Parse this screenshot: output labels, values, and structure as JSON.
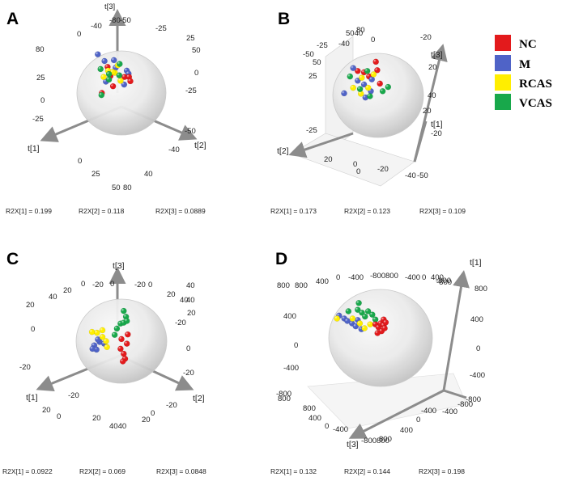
{
  "legend": {
    "entries": [
      {
        "name": "NC",
        "color": "#e31a1c"
      },
      {
        "name": "M",
        "color": "#4f63c7"
      },
      {
        "name": "RCAS",
        "color": "#ffee00"
      },
      {
        "name": "VCAS",
        "color": "#18a84b"
      }
    ]
  },
  "chart_data": [
    {
      "panel": "A",
      "type": "scatter",
      "title": "",
      "axes": [
        "t[1]",
        "t[2]",
        "t[3]"
      ],
      "tick_labels": [
        "t[3]",
        "-80",
        "-50",
        "-25",
        "-40",
        "0",
        "25",
        "50",
        "80",
        "25",
        "0",
        "-25",
        "-25",
        "-50",
        "0",
        "-40",
        "25",
        "0",
        "40",
        "50",
        "80",
        "t[1]",
        "t[2]"
      ],
      "variance": [
        "R2X[1] = 0.199",
        "R2X[2] = 0.118",
        "R2X[3] = 0.0889"
      ],
      "points": [
        {
          "group": "M",
          "x": 0.62,
          "y": 0.24
        },
        {
          "group": "M",
          "x": 0.83,
          "y": 0.22
        },
        {
          "group": "M",
          "x": 0.87,
          "y": 0.4
        },
        {
          "group": "M",
          "x": 1.12,
          "y": 0.47
        },
        {
          "group": "M",
          "x": 1.16,
          "y": 0.54
        },
        {
          "group": "M",
          "x": 1.06,
          "y": 0.8
        },
        {
          "group": "M",
          "x": 0.65,
          "y": 0.73
        },
        {
          "group": "M",
          "x": 0.47,
          "y": 0.08
        },
        {
          "group": "NC",
          "x": 0.69,
          "y": 0.38
        },
        {
          "group": "NC",
          "x": 1.07,
          "y": 0.62
        },
        {
          "group": "NC",
          "x": 1.17,
          "y": 0.62
        },
        {
          "group": "NC",
          "x": 0.81,
          "y": 0.84
        },
        {
          "group": "NC",
          "x": 1.2,
          "y": 0.72
        },
        {
          "group": "NC",
          "x": 0.56,
          "y": 1.0
        },
        {
          "group": "NC",
          "x": 0.75,
          "y": 0.6
        },
        {
          "group": "RCAS",
          "x": 0.85,
          "y": 0.52
        },
        {
          "group": "RCAS",
          "x": 0.92,
          "y": 0.34
        },
        {
          "group": "RCAS",
          "x": 0.8,
          "y": 0.5
        },
        {
          "group": "RCAS",
          "x": 0.98,
          "y": 0.71
        },
        {
          "group": "RCAS",
          "x": 0.6,
          "y": 0.62
        },
        {
          "group": "RCAS",
          "x": 0.7,
          "y": 0.47
        },
        {
          "group": "VCAS",
          "x": 0.53,
          "y": 0.43
        },
        {
          "group": "VCAS",
          "x": 0.72,
          "y": 0.55
        },
        {
          "group": "VCAS",
          "x": 0.95,
          "y": 0.58
        },
        {
          "group": "VCAS",
          "x": 0.72,
          "y": 0.68
        },
        {
          "group": "VCAS",
          "x": 0.55,
          "y": 1.05
        },
        {
          "group": "VCAS",
          "x": 0.96,
          "y": 0.31
        }
      ]
    },
    {
      "panel": "B",
      "type": "scatter",
      "title": "",
      "axes": [
        "t[1]",
        "t[2]",
        "t[3]"
      ],
      "tick_labels": [
        "5040",
        "80",
        "-25",
        "-50",
        "-40",
        "0",
        "-20",
        "20",
        "t[3]",
        "50",
        "25",
        "-25",
        "40",
        "20",
        "t[1]",
        "-20",
        "0",
        "20",
        "-40",
        "-50",
        "-20",
        "0",
        "t[2]"
      ],
      "variance": [
        "R2X[1] = 0.173",
        "R2X[2] = 0.123",
        "R2X[3] = 0.109"
      ],
      "points": [
        {
          "group": "NC",
          "x": 0.55,
          "y": 0.42
        },
        {
          "group": "NC",
          "x": 0.69,
          "y": 0.45
        },
        {
          "group": "NC",
          "x": 0.8,
          "y": 0.55
        },
        {
          "group": "NC",
          "x": 1.04,
          "y": 0.72
        },
        {
          "group": "NC",
          "x": 0.98,
          "y": 0.4
        },
        {
          "group": "NC",
          "x": 0.95,
          "y": 0.2
        },
        {
          "group": "M",
          "x": 0.45,
          "y": 0.35
        },
        {
          "group": "M",
          "x": 0.25,
          "y": 0.95
        },
        {
          "group": "M",
          "x": 0.55,
          "y": 0.65
        },
        {
          "group": "M",
          "x": 0.69,
          "y": 0.74
        },
        {
          "group": "M",
          "x": 0.84,
          "y": 0.9
        },
        {
          "group": "M",
          "x": 0.72,
          "y": 1.05
        },
        {
          "group": "M",
          "x": 0.86,
          "y": 0.62
        },
        {
          "group": "RCAS",
          "x": 0.64,
          "y": 0.58
        },
        {
          "group": "RCAS",
          "x": 0.78,
          "y": 0.82
        },
        {
          "group": "RCAS",
          "x": 0.62,
          "y": 0.96
        },
        {
          "group": "RCAS",
          "x": 0.9,
          "y": 0.5
        },
        {
          "group": "RCAS",
          "x": 0.45,
          "y": 0.82
        },
        {
          "group": "VCAS",
          "x": 0.38,
          "y": 0.55
        },
        {
          "group": "VCAS",
          "x": 0.6,
          "y": 0.85
        },
        {
          "group": "VCAS",
          "x": 0.82,
          "y": 1.02
        },
        {
          "group": "VCAS",
          "x": 1.1,
          "y": 0.9
        },
        {
          "group": "VCAS",
          "x": 1.22,
          "y": 0.8
        },
        {
          "group": "VCAS",
          "x": 0.76,
          "y": 0.42
        }
      ]
    },
    {
      "panel": "C",
      "type": "scatter",
      "title": "",
      "axes": [
        "t[1]",
        "t[2]",
        "t[3]"
      ],
      "tick_labels": [
        "-20",
        "0",
        "-20",
        "0",
        "20",
        "40",
        "20",
        "40",
        "20",
        "0",
        "-20",
        "t[3]",
        "20",
        "0",
        "-20",
        "0",
        "-20",
        "20",
        "0",
        "-20",
        "40",
        "20",
        "40",
        "-20",
        "0",
        "20",
        "4040",
        "t[1]",
        "t[2]"
      ],
      "variance": [
        "R2X[1] = 0.0922",
        "R2X[2] = 0.069",
        "R2X[3] = 0.0848"
      ],
      "points": [
        {
          "group": "VCAS",
          "x": 1.05,
          "y": 0.28
        },
        {
          "group": "VCAS",
          "x": 1.1,
          "y": 0.42
        },
        {
          "group": "VCAS",
          "x": 0.98,
          "y": 0.58
        },
        {
          "group": "VCAS",
          "x": 0.9,
          "y": 0.7
        },
        {
          "group": "VCAS",
          "x": 1.05,
          "y": 0.56
        },
        {
          "group": "VCAS",
          "x": 0.85,
          "y": 0.85
        },
        {
          "group": "VCAS",
          "x": 1.12,
          "y": 0.52
        },
        {
          "group": "NC",
          "x": 1.0,
          "y": 0.95
        },
        {
          "group": "NC",
          "x": 1.12,
          "y": 1.06
        },
        {
          "group": "NC",
          "x": 0.98,
          "y": 1.18
        },
        {
          "group": "NC",
          "x": 1.05,
          "y": 1.3
        },
        {
          "group": "NC",
          "x": 1.08,
          "y": 1.42
        },
        {
          "group": "NC",
          "x": 1.03,
          "y": 1.48
        },
        {
          "group": "NC",
          "x": 1.14,
          "y": 0.84
        },
        {
          "group": "M",
          "x": 0.4,
          "y": 1.1
        },
        {
          "group": "M",
          "x": 0.45,
          "y": 1.2
        },
        {
          "group": "M",
          "x": 0.52,
          "y": 1.02
        },
        {
          "group": "M",
          "x": 0.62,
          "y": 1.06
        },
        {
          "group": "M",
          "x": 0.48,
          "y": 0.96
        },
        {
          "group": "M",
          "x": 0.36,
          "y": 1.18
        },
        {
          "group": "RCAS",
          "x": 0.35,
          "y": 0.78
        },
        {
          "group": "RCAS",
          "x": 0.46,
          "y": 0.8
        },
        {
          "group": "RCAS",
          "x": 0.58,
          "y": 0.9
        },
        {
          "group": "RCAS",
          "x": 0.66,
          "y": 1.0
        },
        {
          "group": "RCAS",
          "x": 0.68,
          "y": 1.14
        },
        {
          "group": "RCAS",
          "x": 0.58,
          "y": 0.74
        }
      ]
    },
    {
      "panel": "D",
      "type": "scatter",
      "title": "",
      "axes": [
        "t[1]",
        "t[2]",
        "t[3]"
      ],
      "tick_labels": [
        "-800800",
        "-400",
        "0",
        "400",
        "800",
        "-400",
        "0",
        "400",
        "800",
        "t[1]",
        "800",
        "400",
        "0",
        "-400",
        "-800",
        "800",
        "-800",
        "400",
        "0",
        "-400",
        "-800",
        "800",
        "400",
        "0",
        "-400",
        "-800",
        "-400",
        "0",
        "400",
        "800",
        "-800",
        "-400",
        "-800800",
        "t[3]"
      ],
      "variance": [
        "R2X[1] = 0.132",
        "R2X[2] = 0.144",
        "R2X[3] = 0.198"
      ],
      "points": [
        {
          "group": "M",
          "x": 0.2,
          "y": 0.54
        },
        {
          "group": "M",
          "x": 0.3,
          "y": 0.6
        },
        {
          "group": "M",
          "x": 0.36,
          "y": 0.65
        },
        {
          "group": "M",
          "x": 0.45,
          "y": 0.7
        },
        {
          "group": "M",
          "x": 0.52,
          "y": 0.76
        },
        {
          "group": "M",
          "x": 0.56,
          "y": 0.63
        },
        {
          "group": "M",
          "x": 0.63,
          "y": 0.82
        },
        {
          "group": "RCAS",
          "x": 0.16,
          "y": 0.6
        },
        {
          "group": "RCAS",
          "x": 0.46,
          "y": 0.6
        },
        {
          "group": "RCAS",
          "x": 0.6,
          "y": 0.7
        },
        {
          "group": "RCAS",
          "x": 0.69,
          "y": 0.8
        },
        {
          "group": "RCAS",
          "x": 0.8,
          "y": 0.72
        },
        {
          "group": "VCAS",
          "x": 0.38,
          "y": 0.45
        },
        {
          "group": "VCAS",
          "x": 0.56,
          "y": 0.42
        },
        {
          "group": "VCAS",
          "x": 0.64,
          "y": 0.48
        },
        {
          "group": "VCAS",
          "x": 0.7,
          "y": 0.56
        },
        {
          "group": "VCAS",
          "x": 0.76,
          "y": 0.45
        },
        {
          "group": "VCAS",
          "x": 0.84,
          "y": 0.52
        },
        {
          "group": "VCAS",
          "x": 0.9,
          "y": 0.62
        },
        {
          "group": "VCAS",
          "x": 0.58,
          "y": 0.28
        },
        {
          "group": "NC",
          "x": 0.9,
          "y": 0.72
        },
        {
          "group": "NC",
          "x": 0.96,
          "y": 0.78
        },
        {
          "group": "NC",
          "x": 1.0,
          "y": 0.7
        },
        {
          "group": "NC",
          "x": 1.06,
          "y": 0.74
        },
        {
          "group": "NC",
          "x": 1.02,
          "y": 0.86
        },
        {
          "group": "NC",
          "x": 0.94,
          "y": 0.9
        },
        {
          "group": "NC",
          "x": 1.06,
          "y": 0.62
        },
        {
          "group": "NC",
          "x": 1.1,
          "y": 0.68
        },
        {
          "group": "NC",
          "x": 1.08,
          "y": 0.8
        }
      ]
    }
  ]
}
